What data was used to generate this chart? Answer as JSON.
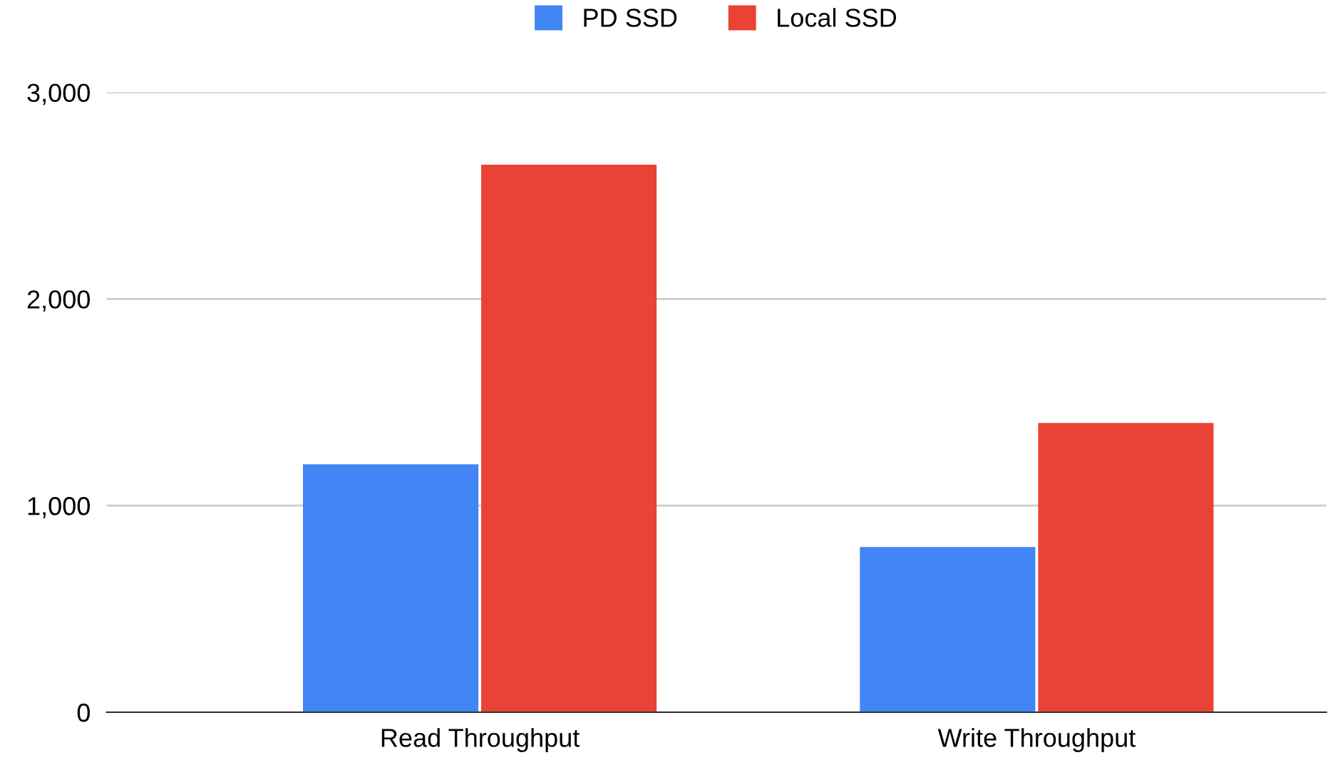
{
  "chart_data": {
    "type": "bar",
    "categories": [
      "Read Throughput",
      "Write Throughput"
    ],
    "series": [
      {
        "name": "PD SSD",
        "color": "#4285f4",
        "values": [
          1200,
          800
        ]
      },
      {
        "name": "Local SSD",
        "color": "#ea4335",
        "values": [
          2650,
          1400
        ]
      }
    ],
    "ylim": [
      0,
      3000
    ],
    "yticks": [
      {
        "value": 0,
        "label": "0"
      },
      {
        "value": 1000,
        "label": "1,000"
      },
      {
        "value": 2000,
        "label": "2,000"
      },
      {
        "value": 3000,
        "label": "3,000"
      }
    ],
    "grid": "y",
    "legend": "top"
  }
}
